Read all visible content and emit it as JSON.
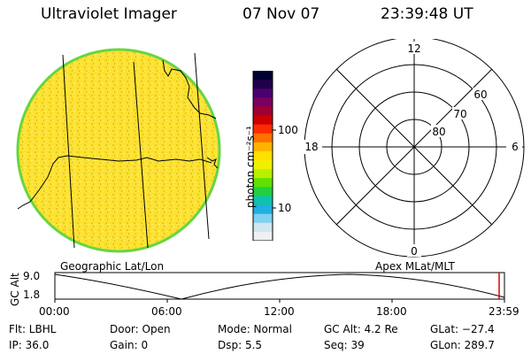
{
  "header": {
    "title": "Ultraviolet Imager",
    "date": "07 Nov 07",
    "time": "23:39:48 UT"
  },
  "map": {
    "label": "Geographic Lat/Lon"
  },
  "colorbar": {
    "label": "photon cm⁻²s⁻¹",
    "ticks": [
      "100",
      "10"
    ],
    "colors": [
      "#000033",
      "#20004a",
      "#4b0070",
      "#7a0060",
      "#a00030",
      "#cc0000",
      "#ff2a00",
      "#ff7000",
      "#ffb300",
      "#ffe000",
      "#f0f000",
      "#b8f000",
      "#60e000",
      "#20d040",
      "#10c0b0",
      "#20b0e0",
      "#80d0f0",
      "#d0e6f0",
      "#f0f0f0"
    ]
  },
  "polar": {
    "label": "Apex MLat/MLT",
    "mlt_labels": {
      "top": "12",
      "right": "6",
      "bottom": "0",
      "left": "18"
    },
    "lat_labels": [
      "60",
      "70",
      "80"
    ]
  },
  "altitude_plot": {
    "ylabel": "GC Alt",
    "yticks": [
      "9.0",
      "1.8"
    ],
    "xticks": [
      "00:00",
      "06:00",
      "12:00",
      "18:00",
      "23:59"
    ],
    "marker_color": "#dd0000"
  },
  "info": {
    "filter": "Flt: LBHL",
    "ip": "IP: 36.0",
    "door": "Door:  Open",
    "gain": "Gain:    0",
    "mode": "Mode:  Normal",
    "dsp": "Dsp:        5.5",
    "gc_alt": "GC Alt:  4.2 Re",
    "seq": "Seq:  39",
    "glat": "GLat:  −27.4",
    "glon": "GLon:  289.7"
  }
}
